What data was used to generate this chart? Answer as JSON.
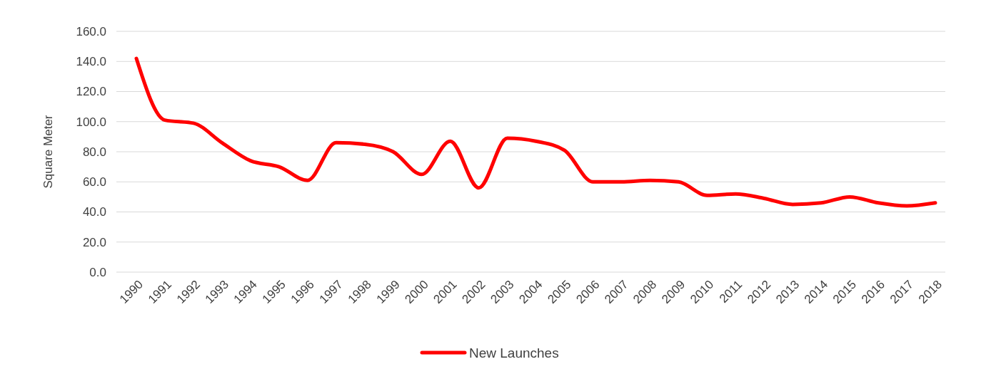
{
  "chart_data": {
    "type": "line",
    "ylabel": "Square Meter",
    "categories": [
      "1990",
      "1991",
      "1992",
      "1993",
      "1994",
      "1995",
      "1996",
      "1997",
      "1998",
      "1999",
      "2000",
      "2001",
      "2002",
      "2003",
      "2004",
      "2005",
      "2006",
      "2007",
      "2008",
      "2009",
      "2010",
      "2011",
      "2012",
      "2013",
      "2014",
      "2015",
      "2016",
      "2017",
      "2018"
    ],
    "series": [
      {
        "name": "New Launches",
        "color": "#ff0000",
        "values": [
          142,
          101,
          99,
          86,
          74,
          70,
          61,
          86,
          85,
          80,
          65,
          87,
          56,
          89,
          87,
          81,
          60,
          60,
          61,
          60,
          51,
          52,
          49,
          45,
          46,
          50,
          46,
          44,
          46
        ]
      }
    ],
    "ylim": [
      0,
      160
    ],
    "yticks": [
      {
        "value": 0,
        "label": "0.0"
      },
      {
        "value": 20,
        "label": "20.0"
      },
      {
        "value": 40,
        "label": "40.0"
      },
      {
        "value": 60,
        "label": "60.0"
      },
      {
        "value": 80,
        "label": "80.0"
      },
      {
        "value": 100,
        "label": "100.0"
      },
      {
        "value": 120,
        "label": "120.0"
      },
      {
        "value": 140,
        "label": "140.0"
      },
      {
        "value": 160,
        "label": "160.0"
      }
    ],
    "grid": "y",
    "legend": "bottom",
    "marker": "none",
    "line_style": "solid"
  }
}
